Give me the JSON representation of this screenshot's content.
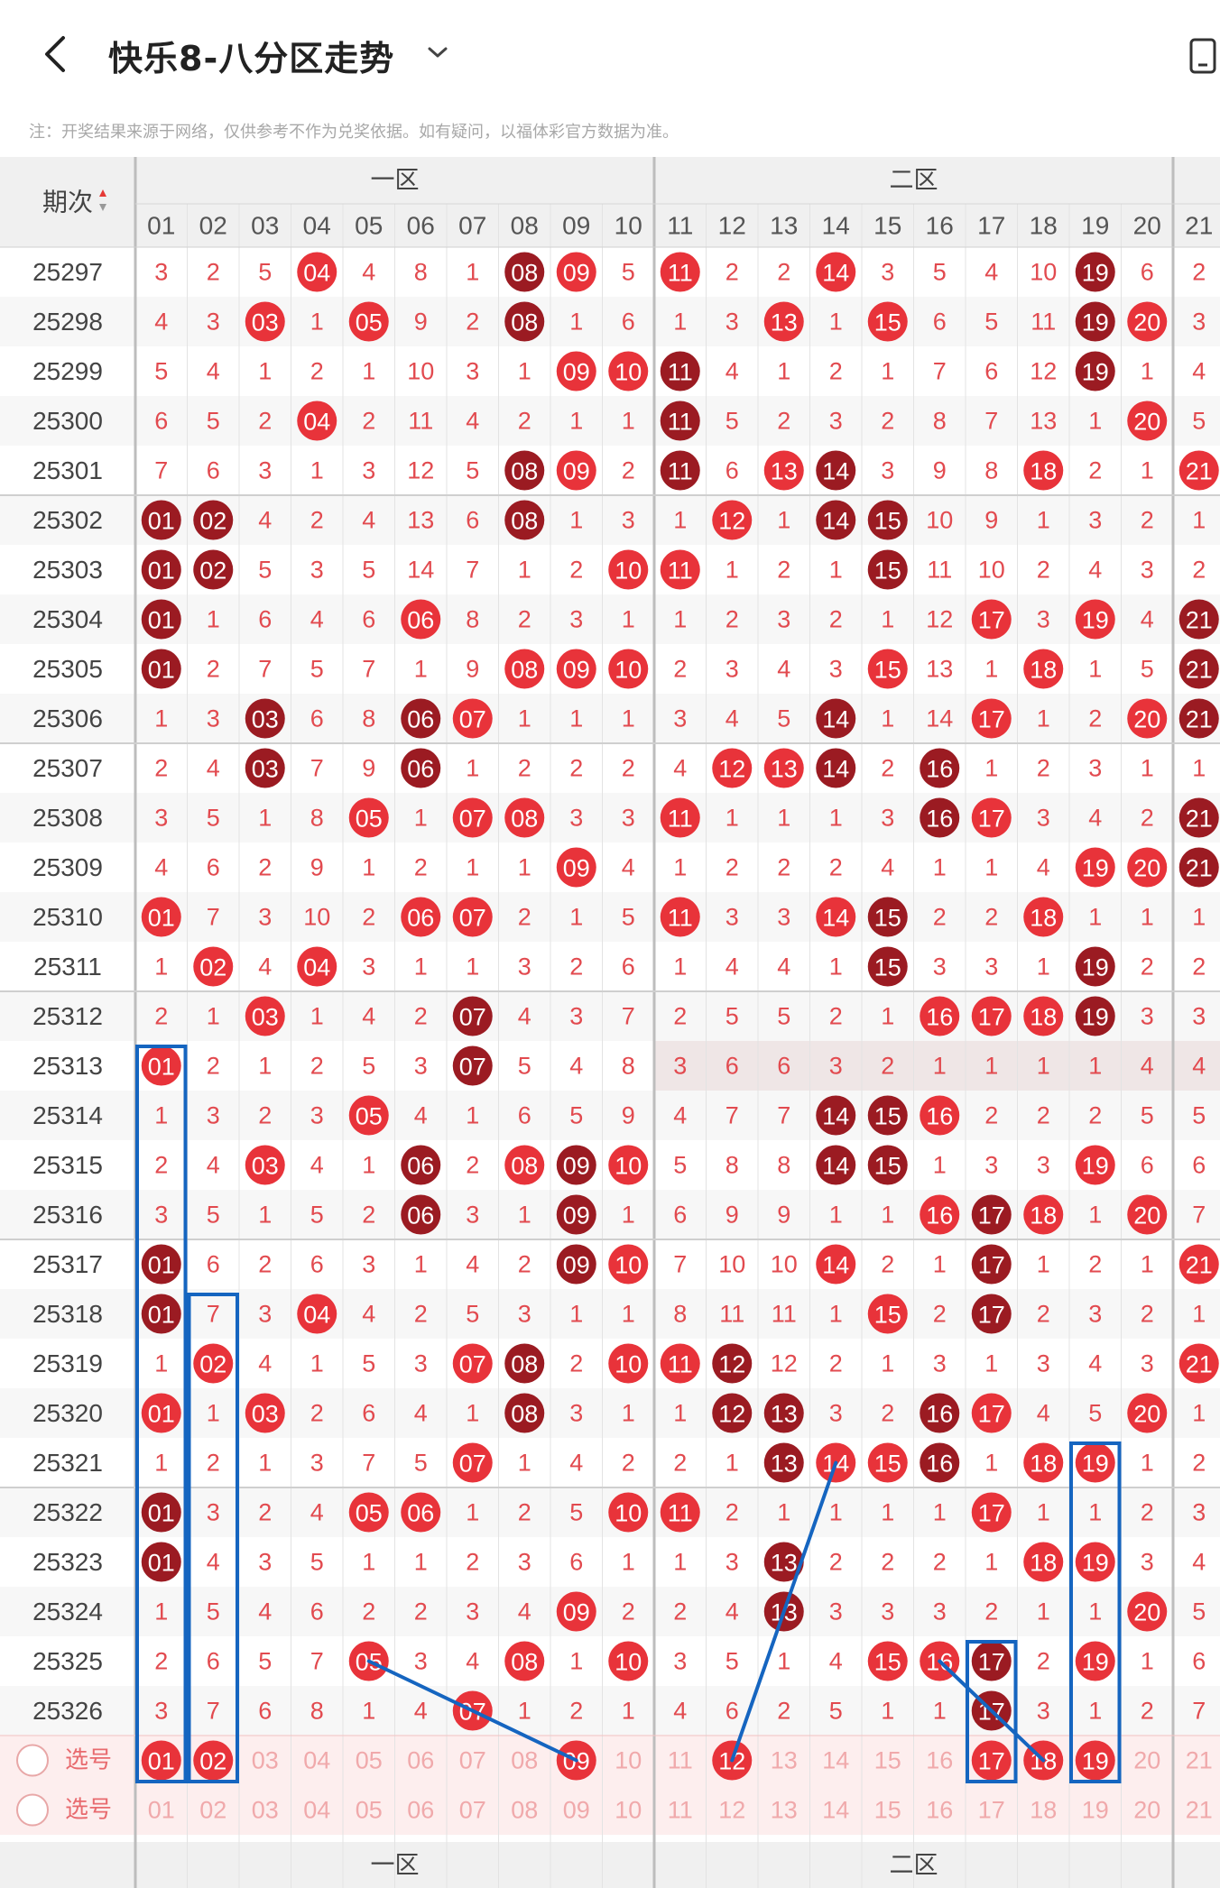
{
  "header": {
    "title": "快乐8-八分区走势",
    "note": "注：开奖结果来源于网络，仅供参考不作为兑奖依据。如有疑问，以福体彩官方数据为准。"
  },
  "table": {
    "issue_header": "期次",
    "zone_headers": [
      "一区",
      "二区"
    ],
    "columns": [
      "01",
      "02",
      "03",
      "04",
      "05",
      "06",
      "07",
      "08",
      "09",
      "10",
      "11",
      "12",
      "13",
      "14",
      "15",
      "16",
      "17",
      "18",
      "19",
      "20",
      "21"
    ],
    "rows": [
      {
        "issue": "25297",
        "cells": [
          "3",
          "2",
          "5",
          "04",
          "4",
          "8",
          "1",
          "08",
          "09",
          "5",
          "11",
          "2",
          "2",
          "14",
          "3",
          "5",
          "4",
          "10",
          "19",
          "6",
          "2"
        ]
      },
      {
        "issue": "25298",
        "cells": [
          "4",
          "3",
          "03",
          "1",
          "05",
          "9",
          "2",
          "08",
          "1",
          "6",
          "1",
          "3",
          "13",
          "1",
          "15",
          "6",
          "5",
          "11",
          "19",
          "20",
          "3"
        ]
      },
      {
        "issue": "25299",
        "cells": [
          "5",
          "4",
          "1",
          "2",
          "1",
          "10",
          "3",
          "1",
          "09",
          "10",
          "11",
          "4",
          "1",
          "2",
          "1",
          "7",
          "6",
          "12",
          "19",
          "1",
          "4"
        ]
      },
      {
        "issue": "25300",
        "cells": [
          "6",
          "5",
          "2",
          "04",
          "2",
          "11",
          "4",
          "2",
          "1",
          "1",
          "11",
          "5",
          "2",
          "3",
          "2",
          "8",
          "7",
          "13",
          "1",
          "20",
          "5"
        ]
      },
      {
        "issue": "25301",
        "cells": [
          "7",
          "6",
          "3",
          "1",
          "3",
          "12",
          "5",
          "08",
          "09",
          "2",
          "11",
          "6",
          "13",
          "14",
          "3",
          "9",
          "8",
          "18",
          "2",
          "1",
          "21"
        ]
      },
      {
        "issue": "25302",
        "cells": [
          "01",
          "02",
          "4",
          "2",
          "4",
          "13",
          "6",
          "08",
          "1",
          "3",
          "1",
          "12",
          "1",
          "14",
          "15",
          "10",
          "9",
          "1",
          "3",
          "2",
          "1"
        ]
      },
      {
        "issue": "25303",
        "cells": [
          "01",
          "02",
          "5",
          "3",
          "5",
          "14",
          "7",
          "1",
          "2",
          "10",
          "11",
          "1",
          "2",
          "1",
          "15",
          "11",
          "10",
          "2",
          "4",
          "3",
          "2"
        ]
      },
      {
        "issue": "25304",
        "cells": [
          "01",
          "1",
          "6",
          "4",
          "6",
          "06",
          "8",
          "2",
          "3",
          "1",
          "1",
          "2",
          "3",
          "2",
          "1",
          "12",
          "17",
          "3",
          "19",
          "4",
          "21"
        ]
      },
      {
        "issue": "25305",
        "cells": [
          "01",
          "2",
          "7",
          "5",
          "7",
          "1",
          "9",
          "08",
          "09",
          "10",
          "2",
          "3",
          "4",
          "3",
          "15",
          "13",
          "1",
          "18",
          "1",
          "5",
          "21"
        ]
      },
      {
        "issue": "25306",
        "cells": [
          "1",
          "3",
          "03",
          "6",
          "8",
          "06",
          "07",
          "1",
          "1",
          "1",
          "3",
          "4",
          "5",
          "14",
          "1",
          "14",
          "17",
          "1",
          "2",
          "20",
          "21"
        ]
      },
      {
        "issue": "25307",
        "cells": [
          "2",
          "4",
          "03",
          "7",
          "9",
          "06",
          "1",
          "2",
          "2",
          "2",
          "4",
          "12",
          "13",
          "14",
          "2",
          "16",
          "1",
          "2",
          "3",
          "1",
          "1"
        ]
      },
      {
        "issue": "25308",
        "cells": [
          "3",
          "5",
          "1",
          "8",
          "05",
          "1",
          "07",
          "08",
          "3",
          "3",
          "11",
          "1",
          "1",
          "1",
          "3",
          "16",
          "17",
          "3",
          "4",
          "2",
          "21"
        ]
      },
      {
        "issue": "25309",
        "cells": [
          "4",
          "6",
          "2",
          "9",
          "1",
          "2",
          "1",
          "1",
          "09",
          "4",
          "1",
          "2",
          "2",
          "2",
          "4",
          "1",
          "1",
          "4",
          "19",
          "20",
          "21"
        ]
      },
      {
        "issue": "25310",
        "cells": [
          "01",
          "7",
          "3",
          "10",
          "2",
          "06",
          "07",
          "2",
          "1",
          "5",
          "11",
          "3",
          "3",
          "14",
          "15",
          "2",
          "2",
          "18",
          "1",
          "1",
          "1"
        ]
      },
      {
        "issue": "25311",
        "cells": [
          "1",
          "02",
          "4",
          "04",
          "3",
          "1",
          "1",
          "3",
          "2",
          "6",
          "1",
          "4",
          "4",
          "1",
          "15",
          "3",
          "3",
          "1",
          "19",
          "2",
          "2"
        ]
      },
      {
        "issue": "25312",
        "cells": [
          "2",
          "1",
          "03",
          "1",
          "4",
          "2",
          "07",
          "4",
          "3",
          "7",
          "2",
          "5",
          "5",
          "2",
          "1",
          "16",
          "17",
          "18",
          "19",
          "3",
          "3"
        ]
      },
      {
        "issue": "25313",
        "cells": [
          "01",
          "2",
          "1",
          "2",
          "5",
          "3",
          "07",
          "5",
          "4",
          "8",
          "3",
          "6",
          "6",
          "3",
          "2",
          "1",
          "1",
          "1",
          "1",
          "4",
          "4"
        ]
      },
      {
        "issue": "25314",
        "cells": [
          "1",
          "3",
          "2",
          "3",
          "05",
          "4",
          "1",
          "6",
          "5",
          "9",
          "4",
          "7",
          "7",
          "14",
          "15",
          "16",
          "2",
          "2",
          "2",
          "5",
          "5"
        ]
      },
      {
        "issue": "25315",
        "cells": [
          "2",
          "4",
          "03",
          "4",
          "1",
          "06",
          "2",
          "08",
          "09",
          "10",
          "5",
          "8",
          "8",
          "14",
          "15",
          "1",
          "3",
          "3",
          "19",
          "6",
          "6"
        ]
      },
      {
        "issue": "25316",
        "cells": [
          "3",
          "5",
          "1",
          "5",
          "2",
          "06",
          "3",
          "1",
          "09",
          "1",
          "6",
          "9",
          "9",
          "1",
          "1",
          "16",
          "17",
          "18",
          "1",
          "20",
          "7"
        ]
      },
      {
        "issue": "25317",
        "cells": [
          "01",
          "6",
          "2",
          "6",
          "3",
          "1",
          "4",
          "2",
          "09",
          "10",
          "7",
          "10",
          "10",
          "14",
          "2",
          "1",
          "17",
          "1",
          "2",
          "1",
          "21"
        ]
      },
      {
        "issue": "25318",
        "cells": [
          "01",
          "7",
          "3",
          "04",
          "4",
          "2",
          "5",
          "3",
          "1",
          "1",
          "8",
          "11",
          "11",
          "1",
          "15",
          "2",
          "17",
          "2",
          "3",
          "2",
          "1"
        ]
      },
      {
        "issue": "25319",
        "cells": [
          "1",
          "02",
          "4",
          "1",
          "5",
          "3",
          "07",
          "08",
          "2",
          "10",
          "11",
          "12",
          "12",
          "2",
          "1",
          "3",
          "1",
          "3",
          "4",
          "3",
          "21"
        ]
      },
      {
        "issue": "25320",
        "cells": [
          "01",
          "1",
          "03",
          "2",
          "6",
          "4",
          "1",
          "08",
          "3",
          "1",
          "1",
          "12",
          "13",
          "3",
          "2",
          "16",
          "17",
          "4",
          "5",
          "20",
          "1"
        ]
      },
      {
        "issue": "25321",
        "cells": [
          "1",
          "2",
          "1",
          "3",
          "7",
          "5",
          "07",
          "1",
          "4",
          "2",
          "2",
          "1",
          "13",
          "14",
          "15",
          "16",
          "1",
          "18",
          "19",
          "1",
          "2"
        ]
      },
      {
        "issue": "25322",
        "cells": [
          "01",
          "3",
          "2",
          "4",
          "05",
          "06",
          "1",
          "2",
          "5",
          "10",
          "11",
          "2",
          "1",
          "1",
          "1",
          "1",
          "17",
          "1",
          "1",
          "2",
          "3"
        ]
      },
      {
        "issue": "25323",
        "cells": [
          "01",
          "4",
          "3",
          "5",
          "1",
          "1",
          "2",
          "3",
          "6",
          "1",
          "1",
          "3",
          "13",
          "2",
          "2",
          "2",
          "1",
          "18",
          "19",
          "3",
          "4"
        ]
      },
      {
        "issue": "25324",
        "cells": [
          "1",
          "5",
          "4",
          "6",
          "2",
          "2",
          "3",
          "4",
          "09",
          "2",
          "2",
          "4",
          "13",
          "3",
          "3",
          "3",
          "2",
          "1",
          "1",
          "20",
          "5"
        ]
      },
      {
        "issue": "25325",
        "cells": [
          "2",
          "6",
          "5",
          "7",
          "05",
          "3",
          "4",
          "08",
          "1",
          "10",
          "3",
          "5",
          "1",
          "4",
          "15",
          "16",
          "17",
          "2",
          "19",
          "1",
          "6"
        ]
      },
      {
        "issue": "25326",
        "cells": [
          "3",
          "7",
          "6",
          "8",
          "1",
          "4",
          "07",
          "1",
          "2",
          "1",
          "4",
          "6",
          "2",
          "5",
          "1",
          "1",
          "17",
          "3",
          "1",
          "2",
          "7"
        ]
      }
    ],
    "select_rows": [
      {
        "label": "选号",
        "selected": [
          "01",
          "02",
          "09",
          "12",
          "17",
          "18",
          "19"
        ]
      },
      {
        "label": "选号",
        "selected": []
      }
    ],
    "colors": {
      "ball_light": "#e8333a",
      "ball_dark": "#9b1b22",
      "miss_text": "#e24a4f",
      "line_blue": "#1565c0",
      "header_bg": "#f0f0f0",
      "select_bg": "#fdeeee"
    }
  }
}
